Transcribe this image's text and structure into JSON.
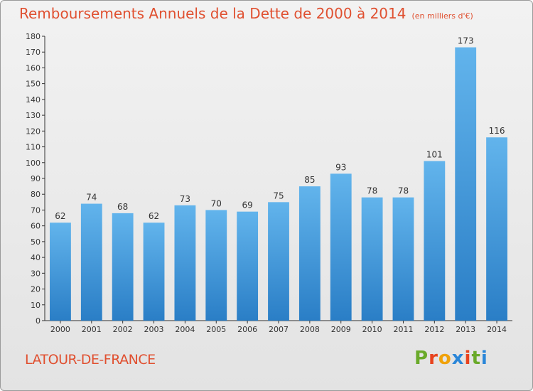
{
  "chart_data": {
    "type": "bar",
    "title": "Remboursements Annuels de la Dette de 2000 à 2014",
    "subtitle": "(en milliers d'€)",
    "categories": [
      "2000",
      "2001",
      "2002",
      "2003",
      "2004",
      "2005",
      "2006",
      "2007",
      "2008",
      "2009",
      "2010",
      "2011",
      "2012",
      "2013",
      "2014"
    ],
    "values": [
      62,
      74,
      68,
      62,
      73,
      70,
      69,
      75,
      85,
      93,
      78,
      78,
      101,
      173,
      116
    ],
    "ylim": [
      0,
      180
    ],
    "ytick_step": 10,
    "grid": false,
    "xlabel": "",
    "ylabel": "",
    "bar_color_top": "#62b4ec",
    "bar_color_bottom": "#2a7ec6"
  },
  "footer": {
    "commune": "LATOUR-DE-FRANCE",
    "brand_letters": [
      "P",
      "r",
      "o",
      "x",
      "i",
      "t",
      "i"
    ],
    "brand_colors": [
      "#6aaa2a",
      "#e8431e",
      "#f0a20a",
      "#2a86d8",
      "#e8431e",
      "#6aaa2a",
      "#2a86d8"
    ]
  },
  "colors": {
    "title": "#e05030",
    "axis": "#333333",
    "label": "#333333"
  }
}
